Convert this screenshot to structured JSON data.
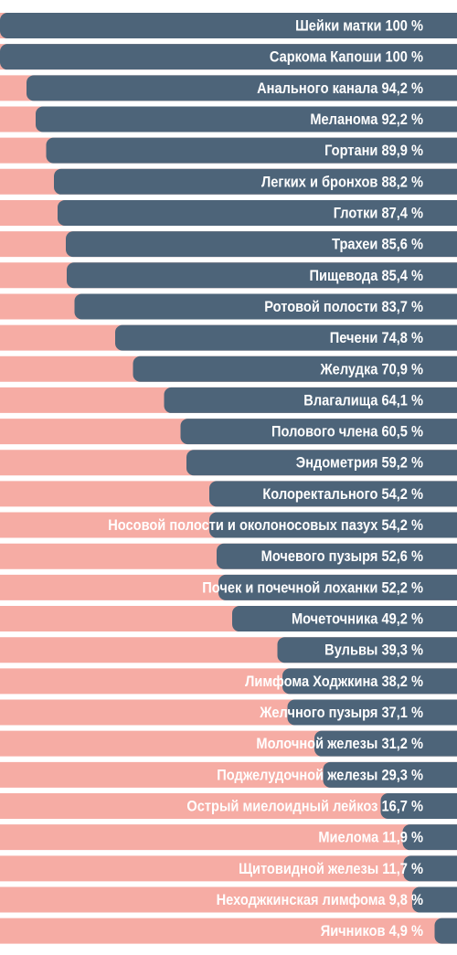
{
  "chart_data": {
    "type": "bar",
    "orientation": "horizontal",
    "categories": [
      "Шейки матки",
      "Саркома Капоши",
      "Анального канала",
      "Меланома",
      "Гортани",
      "Легких и бронхов",
      "Глотки",
      "Трахеи",
      "Пищевода",
      "Ротовой полости",
      "Печени",
      "Желудка",
      "Влагалища",
      "Полового члена",
      "Эндометрия",
      "Колоректального",
      "Носовой полости и околоносовых пазух",
      "Мочевого пузыря",
      "Почек и почечной лоханки",
      "Мочеточника",
      "Вульвы",
      "Лимфома Ходжкина",
      "Желчного пузыря",
      "Молочной железы",
      "Поджелудочной железы",
      "Острый миелоидный лейкоз",
      "Миелома",
      "Щитовидной железы",
      "Неходжкинская лимфома",
      "Яичников"
    ],
    "values": [
      100,
      100,
      94.2,
      92.2,
      89.9,
      88.2,
      87.4,
      85.6,
      85.4,
      83.7,
      74.8,
      70.9,
      64.1,
      60.5,
      59.2,
      54.2,
      54.2,
      52.6,
      52.2,
      49.2,
      39.3,
      38.2,
      37.1,
      31.2,
      29.3,
      16.7,
      11.9,
      11.7,
      9.8,
      4.9
    ],
    "labels": [
      "Шейки матки 100 %",
      "Саркома Капоши 100 %",
      "Анального канала 94,2 %",
      "Меланома 92,2 %",
      "Гортани 89,9 %",
      "Легких и бронхов 88,2 %",
      "Глотки 87,4 %",
      "Трахеи 85,6 %",
      "Пищевода 85,4 %",
      "Ротовой полости 83,7 %",
      "Печени 74,8 %",
      "Желудка 70,9 %",
      "Влагалища 64,1 %",
      "Полового члена 60,5 %",
      "Эндометрия 59,2 %",
      "Колоректального 54,2 %",
      "Носовой полости и околоносовых пазух 54,2 %",
      "Мочевого пузыря 52,6 %",
      "Почек и почечной лоханки 52,2 %",
      "Мочеточника 49,2 %",
      "Вульвы 39,3 %",
      "Лимфома Ходжкина 38,2 %",
      "Желчного пузыря 37,1 %",
      "Молочной железы 31,2 %",
      "Поджелудочной железы 29,3 %",
      "Острый миелоидный лейкоз 16,7 %",
      "Миелома 11,9 %",
      "Щитовидной железы 11,7 %",
      "Неходжкинская лимфома 9,8 %",
      "Яичников 4,9 %"
    ],
    "xlim": [
      0,
      100
    ],
    "bar_direction": "right-to-left",
    "grid": false,
    "legend": "none",
    "colors": {
      "value_bar": "#4d6479",
      "remainder_bar": "#f6aca4",
      "label_text": "#ffffff",
      "background": "#ffffff"
    }
  }
}
